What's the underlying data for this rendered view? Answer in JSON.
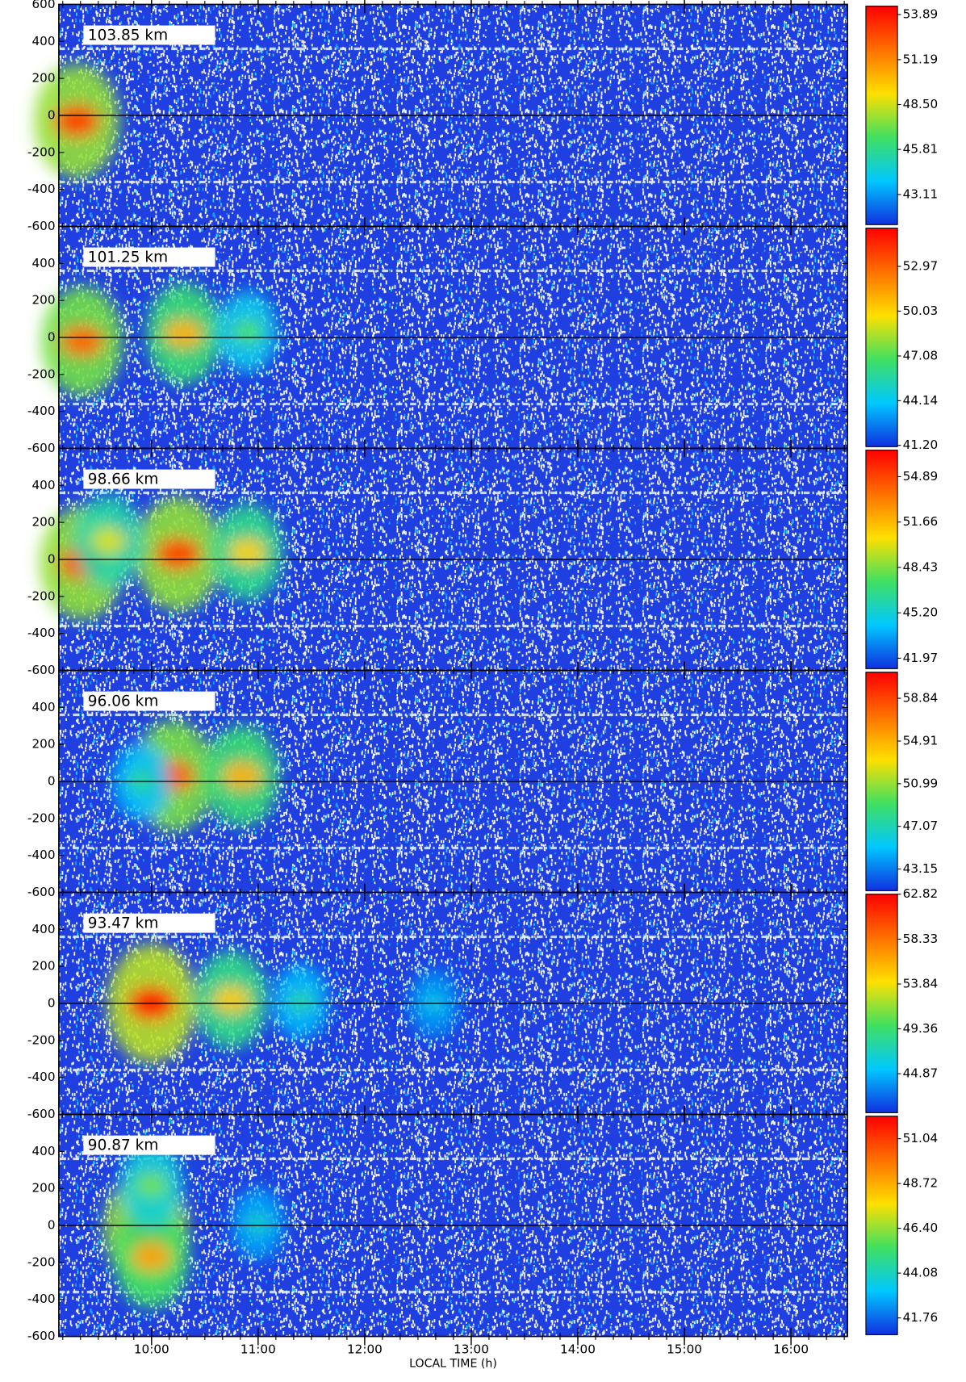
{
  "chart_data": {
    "type": "heatmap",
    "xlabel": "LOCAL TIME (h)",
    "xlim": [
      9.13,
      16.53
    ],
    "xticks": [
      {
        "value": 10,
        "label": "10:00"
      },
      {
        "value": 11,
        "label": "11:00"
      },
      {
        "value": 12,
        "label": "12:00"
      },
      {
        "value": 13,
        "label": "13:00"
      },
      {
        "value": 14,
        "label": "14:00"
      },
      {
        "value": 15,
        "label": "15:00"
      },
      {
        "value": 16,
        "label": "16:00"
      }
    ],
    "ylim": [
      -600,
      600
    ],
    "yticks": [
      -600,
      -400,
      -200,
      0,
      200,
      400,
      600
    ],
    "colormap": [
      "#1030e0",
      "#00c8ff",
      "#40e060",
      "#ffe000",
      "#ff7000",
      "#ff0000"
    ],
    "panels": [
      {
        "label": "103.85 km",
        "clim": [
          41.2,
          54.5
        ],
        "cbar_ticks": [
          53.89,
          51.19,
          48.5,
          45.81,
          43.11
        ],
        "peaks": {
          "x": [
            9.3
          ],
          "y": [
            -30
          ],
          "values": [
            53
          ]
        }
      },
      {
        "label": "101.25 km",
        "clim": [
          41.0,
          55.6
        ],
        "cbar_ticks": [
          52.97,
          50.03,
          47.08,
          44.14,
          41.2
        ],
        "peaks": {
          "x": [
            9.35,
            10.3,
            10.9
          ],
          "y": [
            -20,
            20,
            30
          ],
          "values": [
            53,
            51,
            47
          ]
        }
      },
      {
        "label": "98.66 km",
        "clim": [
          41.1,
          56.9
        ],
        "cbar_ticks": [
          54.89,
          51.66,
          48.43,
          45.2,
          41.97
        ],
        "peaks": {
          "x": [
            9.35,
            10.25,
            10.9,
            9.6
          ],
          "y": [
            -20,
            30,
            40,
            100
          ],
          "values": [
            55,
            55,
            51,
            50
          ]
        }
      },
      {
        "label": "96.06 km",
        "clim": [
          41.0,
          61.4
        ],
        "cbar_ticks": [
          58.84,
          54.91,
          50.99,
          47.07,
          43.15
        ],
        "peaks": {
          "x": [
            10.2,
            10.85,
            9.9
          ],
          "y": [
            30,
            30,
            0
          ],
          "values": [
            58,
            55,
            48
          ]
        }
      },
      {
        "label": "93.47 km",
        "clim": [
          40.8,
          63.0
        ],
        "cbar_ticks": [
          62.82,
          58.33,
          53.84,
          49.36,
          44.87
        ],
        "peaks": {
          "x": [
            10.0,
            10.75,
            11.4,
            12.65
          ],
          "y": [
            0,
            20,
            10,
            0
          ],
          "values": [
            62,
            55,
            48,
            46
          ]
        }
      },
      {
        "label": "90.87 km",
        "clim": [
          40.8,
          52.3
        ],
        "cbar_ticks": [
          51.04,
          48.72,
          46.4,
          44.08,
          41.76
        ],
        "peaks": {
          "x": [
            9.95,
            10.0,
            10.0,
            11.0
          ],
          "y": [
            -20,
            -170,
            220,
            10
          ],
          "values": [
            51,
            49,
            46,
            44
          ]
        }
      }
    ]
  }
}
